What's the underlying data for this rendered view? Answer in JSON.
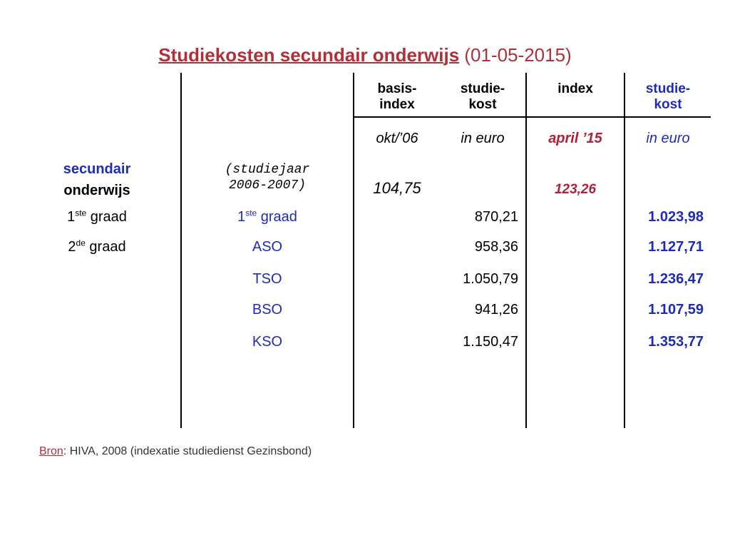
{
  "title": {
    "bold": "Studiekosten secundair onderwijs",
    "rest": " (01-05-2015)"
  },
  "header": {
    "basis_line1": "basis-",
    "basis_line2": "index",
    "studiekost_line1": "studie-",
    "studiekost_line2": "kost",
    "index": "index",
    "studiekost2_line1": "studie-",
    "studiekost2_line2": "kost"
  },
  "subheader": {
    "basis": "okt/’06",
    "studiekost": "in euro",
    "index": "april ’15",
    "studiekost2": "in euro"
  },
  "section": {
    "label_line1": "secundair",
    "label_line2": "onderwijs",
    "note_line1": "(studiejaar",
    "note_line2": "2006-2007)",
    "basis_value": "104,75",
    "index_value": "123,26"
  },
  "rows": [
    {
      "grade_num": "1",
      "grade_sup": "ste",
      "grade_word": " graad",
      "type_num": "1",
      "type_sup": "ste",
      "type_word": " graad",
      "cost_2006": "870,21",
      "cost_2015": "1.023,98"
    },
    {
      "grade_num": "2",
      "grade_sup": "de",
      "grade_word": " graad",
      "type_num": "",
      "type_sup": "",
      "type_word": "ASO",
      "cost_2006": "958,36",
      "cost_2015": "1.127,71"
    },
    {
      "grade_num": "",
      "grade_sup": "",
      "grade_word": "",
      "type_num": "",
      "type_sup": "",
      "type_word": "TSO",
      "cost_2006": "1.050,79",
      "cost_2015": "1.236,47"
    },
    {
      "grade_num": "",
      "grade_sup": "",
      "grade_word": "",
      "type_num": "",
      "type_sup": "",
      "type_word": "BSO",
      "cost_2006": "941,26",
      "cost_2015": "1.107,59"
    },
    {
      "grade_num": "",
      "grade_sup": "",
      "grade_word": "",
      "type_num": "",
      "type_sup": "",
      "type_word": "KSO",
      "cost_2006": "1.150,47",
      "cost_2015": "1.353,77"
    }
  ],
  "source": {
    "label": "Bron",
    "text": ": HIVA, 2008 (indexatie studiedienst Gezinsbond)"
  },
  "colors": {
    "title": "#b03038",
    "blue": "#1f2bb8",
    "red": "#b0203a"
  }
}
